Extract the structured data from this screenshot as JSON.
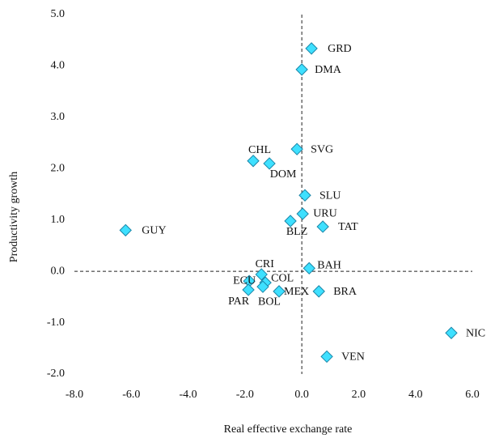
{
  "chart_data": {
    "type": "scatter",
    "x_label": "Real effective exchange rate",
    "y_label": "Productivity growth",
    "color": "#3ee0ff",
    "xlim": [
      -8,
      6
    ],
    "ylim": [
      -2,
      5
    ],
    "xticks": [
      {
        "value": -8,
        "label": "-8.0"
      },
      {
        "value": -6,
        "label": "-6.0"
      },
      {
        "value": -4,
        "label": "-4.0"
      },
      {
        "value": -2,
        "label": "-2.0"
      },
      {
        "value": 0,
        "label": "0.0"
      },
      {
        "value": 2,
        "label": "2.0"
      },
      {
        "value": 4,
        "label": "4.0"
      },
      {
        "value": 6,
        "label": "6.0"
      }
    ],
    "yticks": [
      {
        "value": -2,
        "label": "-2.0"
      },
      {
        "value": -1,
        "label": "-1.0"
      },
      {
        "value": 0,
        "label": "0.0"
      },
      {
        "value": 1,
        "label": "1.0"
      },
      {
        "value": 2,
        "label": "2.0"
      },
      {
        "value": 3,
        "label": "3.0"
      },
      {
        "value": 4,
        "label": "4.0"
      },
      {
        "value": 5,
        "label": "5.0"
      }
    ],
    "labels": [
      "GRD",
      "DMA",
      "SVG",
      "CHL",
      "DOM",
      "SLU",
      "URU",
      "BLZ",
      "TAT",
      "GUY",
      "CRI",
      "BAH",
      "COL",
      "ECU",
      "MEX",
      "BRA",
      "PAR",
      "BOL",
      "NIC",
      "VEN"
    ],
    "x": [
      0.34,
      0.0,
      -0.17,
      -1.71,
      -1.14,
      0.11,
      0.03,
      -0.4,
      0.74,
      -6.2,
      -1.42,
      0.26,
      -1.28,
      -1.85,
      -0.8,
      0.6,
      -1.88,
      -1.37,
      5.26,
      0.88
    ],
    "y": [
      4.34,
      3.93,
      2.38,
      2.15,
      2.1,
      1.48,
      1.12,
      0.98,
      0.87,
      0.8,
      -0.06,
      0.06,
      -0.22,
      -0.19,
      -0.39,
      -0.39,
      -0.36,
      -0.3,
      -1.2,
      -1.66
    ]
  }
}
